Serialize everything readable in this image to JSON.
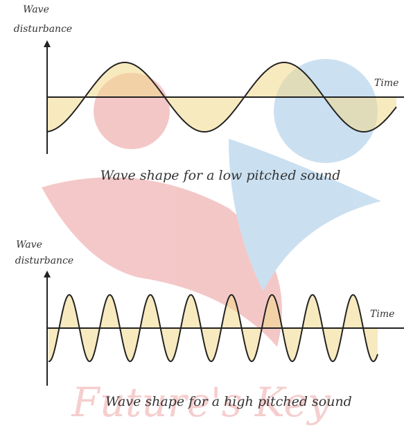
{
  "diagrams": [
    {
      "axis_label": [
        "Wave",
        "disturbance"
      ],
      "x_label": "Time",
      "caption": "Wave shape for a low pitched sound"
    },
    {
      "axis_label": [
        "Wave",
        "disturbance"
      ],
      "x_label": "Time",
      "caption": "Wave shape for a high pitched sound"
    }
  ],
  "watermark": "Future's Key"
}
